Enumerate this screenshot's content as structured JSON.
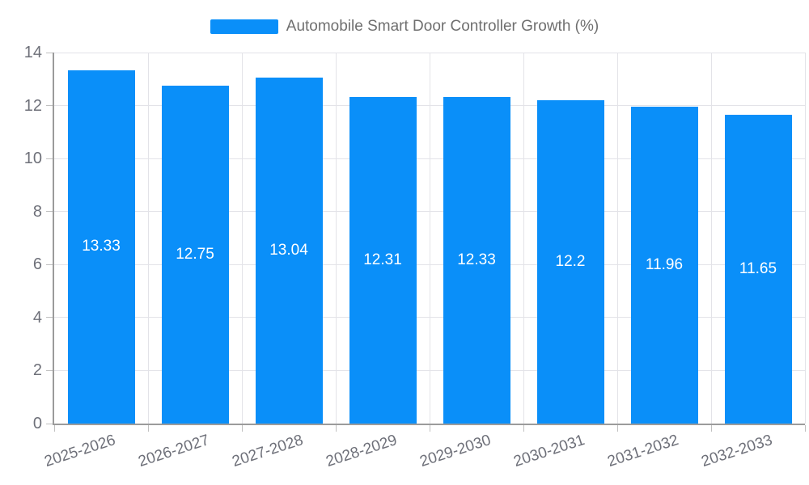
{
  "chart_data": {
    "type": "bar",
    "title": "Automobile Smart Door Controller Growth (%)",
    "categories": [
      "2025-2026",
      "2026-2027",
      "2027-2028",
      "2028-2029",
      "2029-2030",
      "2030-2031",
      "2031-2032",
      "2032-2033"
    ],
    "values": [
      13.33,
      12.75,
      13.04,
      12.31,
      12.33,
      12.2,
      11.96,
      11.65
    ],
    "value_labels": [
      "13.33",
      "12.75",
      "13.04",
      "12.31",
      "12.33",
      "12.2",
      "11.96",
      "11.65"
    ],
    "xlabel": "",
    "ylabel": "",
    "ylim": [
      0,
      14
    ],
    "ytick_step": 2,
    "ytick_labels": [
      "0",
      "2",
      "4",
      "6",
      "8",
      "10",
      "12",
      "14"
    ],
    "grid": true,
    "legend": {
      "label": "Automobile Smart Door Controller Growth (%)",
      "position": "top-center"
    },
    "value_label_position": "inside-center",
    "colors": {
      "bar": "#0a8ff9",
      "value_label_text": "#ffffff",
      "axis_line": "#9b9b9b",
      "tick": "#c0c0c0",
      "gridline": "#e3e3e8",
      "axis_text": "#6e7079",
      "legend_text": "#6f6f6f"
    }
  }
}
